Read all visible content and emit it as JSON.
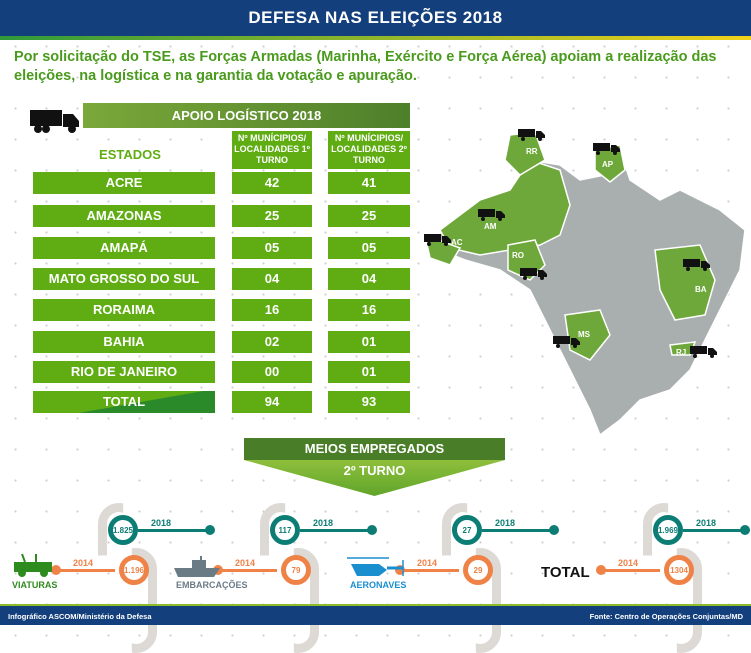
{
  "header": {
    "title": "DEFESA NAS ELEIÇÕES 2018"
  },
  "intro": "Por solicitação do TSE, as Forças Armadas (Marinha, Exército e Força Aérea) apoiam a realização das eleições, na logística e na garantia da votação e apuração.",
  "table": {
    "title": "APOIO LOGÍSTICO 2018",
    "col_state": "ESTADOS",
    "col1": "Nº MUNÍCIPIOS/ LOCALIDADES 1º TURNO",
    "col2": "Nº MUNÍCIPIOS/ LOCALIDADES 2º TURNO",
    "rows": [
      {
        "state": "ACRE",
        "t1": "42",
        "t2": "41"
      },
      {
        "state": "AMAZONAS",
        "t1": "25",
        "t2": "25"
      },
      {
        "state": "AMAPÁ",
        "t1": "05",
        "t2": "05"
      },
      {
        "state": "MATO GROSSO DO SUL",
        "t1": "04",
        "t2": "04"
      },
      {
        "state": "RORAIMA",
        "t1": "16",
        "t2": "16"
      },
      {
        "state": "BAHIA",
        "t1": "02",
        "t2": "01"
      },
      {
        "state": "RIO DE JANEIRO",
        "t1": "00",
        "t2": "01"
      },
      {
        "state": "TOTAL",
        "t1": "94",
        "t2": "93"
      }
    ]
  },
  "map": {
    "labels": [
      "RR",
      "AP",
      "AM",
      "AC",
      "RO",
      "BA",
      "MS",
      "RJ"
    ],
    "highlight_color": "#6fa83a",
    "base_color": "#a9aeae"
  },
  "meios": {
    "title": "MEIOS EMPREGADOS",
    "subtitle": "2º TURNO",
    "year_new": "2018",
    "year_old": "2014",
    "items": [
      {
        "label": "VIATURAS",
        "v2018": "1.825",
        "v2014": "1.196",
        "color": "#2e8b1e"
      },
      {
        "label": "EMBARCAÇÕES",
        "v2018": "117",
        "v2014": "79",
        "color": "#6b7b86"
      },
      {
        "label": "AERONAVES",
        "v2018": "27",
        "v2014": "29",
        "color": "#1a8fd0"
      },
      {
        "label": "TOTAL",
        "v2018": "1.969",
        "v2014": "1304",
        "color": "#111111"
      }
    ]
  },
  "footer": {
    "left": "Infográfico ASCOM/Ministério da Defesa",
    "right": "Fonte: Centro de Operações Conjuntas/MD"
  }
}
